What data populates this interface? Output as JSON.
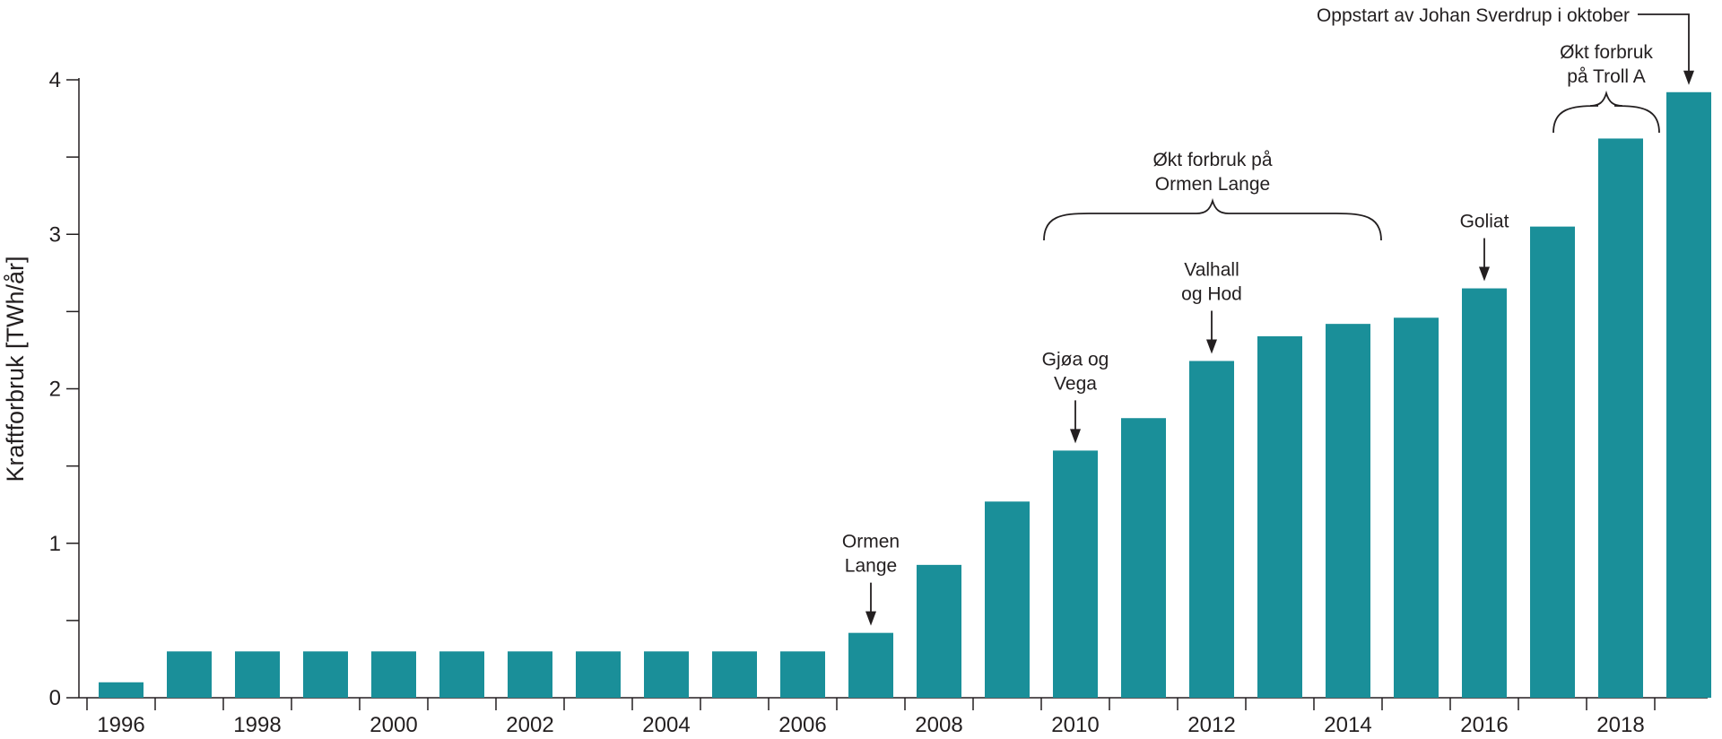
{
  "chart_data": {
    "type": "bar",
    "ylabel": "Kraftforbruk [TWh/år]",
    "xlabel": "",
    "ylim": [
      0,
      4
    ],
    "yticks": [
      0,
      1,
      2,
      3,
      4
    ],
    "yminor": [
      0.5,
      1.5,
      2.5,
      3.5
    ],
    "categories": [
      "1996",
      "1997",
      "1998",
      "1999",
      "2000",
      "2001",
      "2002",
      "2003",
      "2004",
      "2005",
      "2006",
      "2007",
      "2008",
      "2009",
      "2010",
      "2011",
      "2012",
      "2013",
      "2014",
      "2015",
      "2016",
      "2017",
      "2018",
      "2019"
    ],
    "xtick_labels": [
      "1996",
      "1998",
      "2000",
      "2002",
      "2004",
      "2006",
      "2008",
      "2010",
      "2012",
      "2014",
      "2016",
      "2018"
    ],
    "values": [
      0.1,
      0.3,
      0.3,
      0.3,
      0.3,
      0.3,
      0.3,
      0.3,
      0.3,
      0.3,
      0.3,
      0.42,
      0.86,
      1.27,
      1.6,
      1.81,
      2.18,
      2.34,
      2.42,
      2.46,
      2.65,
      3.05,
      3.62,
      3.92
    ],
    "bar_color": "#1a8f99",
    "grid": false,
    "annotations": [
      {
        "id": "ormen-lange",
        "lines": [
          "Ormen",
          "Lange"
        ],
        "kind": "arrow",
        "target": "2007"
      },
      {
        "id": "gjoa-vega",
        "lines": [
          "Gjøa og",
          "Vega"
        ],
        "kind": "arrow",
        "target": "2010"
      },
      {
        "id": "valhall-hod",
        "lines": [
          "Valhall",
          "og Hod"
        ],
        "kind": "arrow",
        "target": "2012"
      },
      {
        "id": "goliat",
        "lines": [
          "Goliat"
        ],
        "kind": "arrow",
        "target": "2016"
      },
      {
        "id": "johan-sverdrup",
        "lines": [
          "Oppstart av Johan Sverdrup i oktober"
        ],
        "kind": "elbow-arrow",
        "target": "2019"
      },
      {
        "id": "ormen-lange-increase",
        "lines": [
          "Økt forbruk på",
          "Ormen Lange"
        ],
        "kind": "brace",
        "from": "2010",
        "to": "2014"
      },
      {
        "id": "troll-a-increase",
        "lines": [
          "Økt forbruk",
          "på Troll A"
        ],
        "kind": "brace",
        "from": "2017",
        "to": "2018"
      }
    ]
  }
}
